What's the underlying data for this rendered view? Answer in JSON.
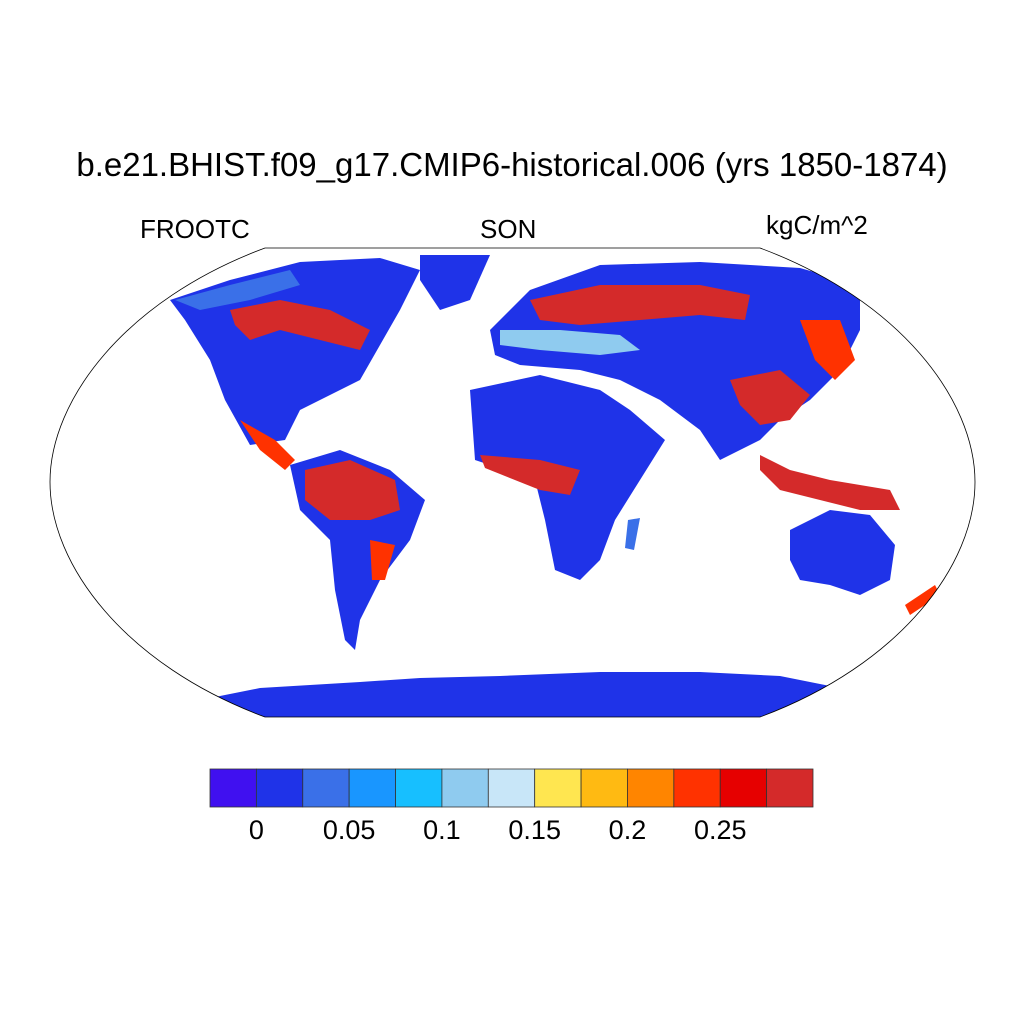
{
  "title": "b.e21.BHIST.f09_g17.CMIP6-historical.006 (yrs 1850-1874)",
  "left_string": "FROOTC",
  "center_string": "SON",
  "right_string": "kgC/m^2",
  "projection": "Robinson",
  "colorbar": {
    "levels": [
      0,
      0.025,
      0.05,
      0.075,
      0.1,
      0.125,
      0.15,
      0.175,
      0.2,
      0.225,
      0.25,
      0.275
    ],
    "labels": [
      "0",
      "0.05",
      "0.1",
      "0.15",
      "0.2",
      "0.25"
    ],
    "colors": [
      "#4010F0",
      "#1F33E8",
      "#3A70E8",
      "#1996FF",
      "#17BFFF",
      "#8FCBEF",
      "#C8E6F8",
      "#FFE650",
      "#FFBA12",
      "#FF8500",
      "#FF3200",
      "#E60000",
      "#D42A2A"
    ]
  }
}
